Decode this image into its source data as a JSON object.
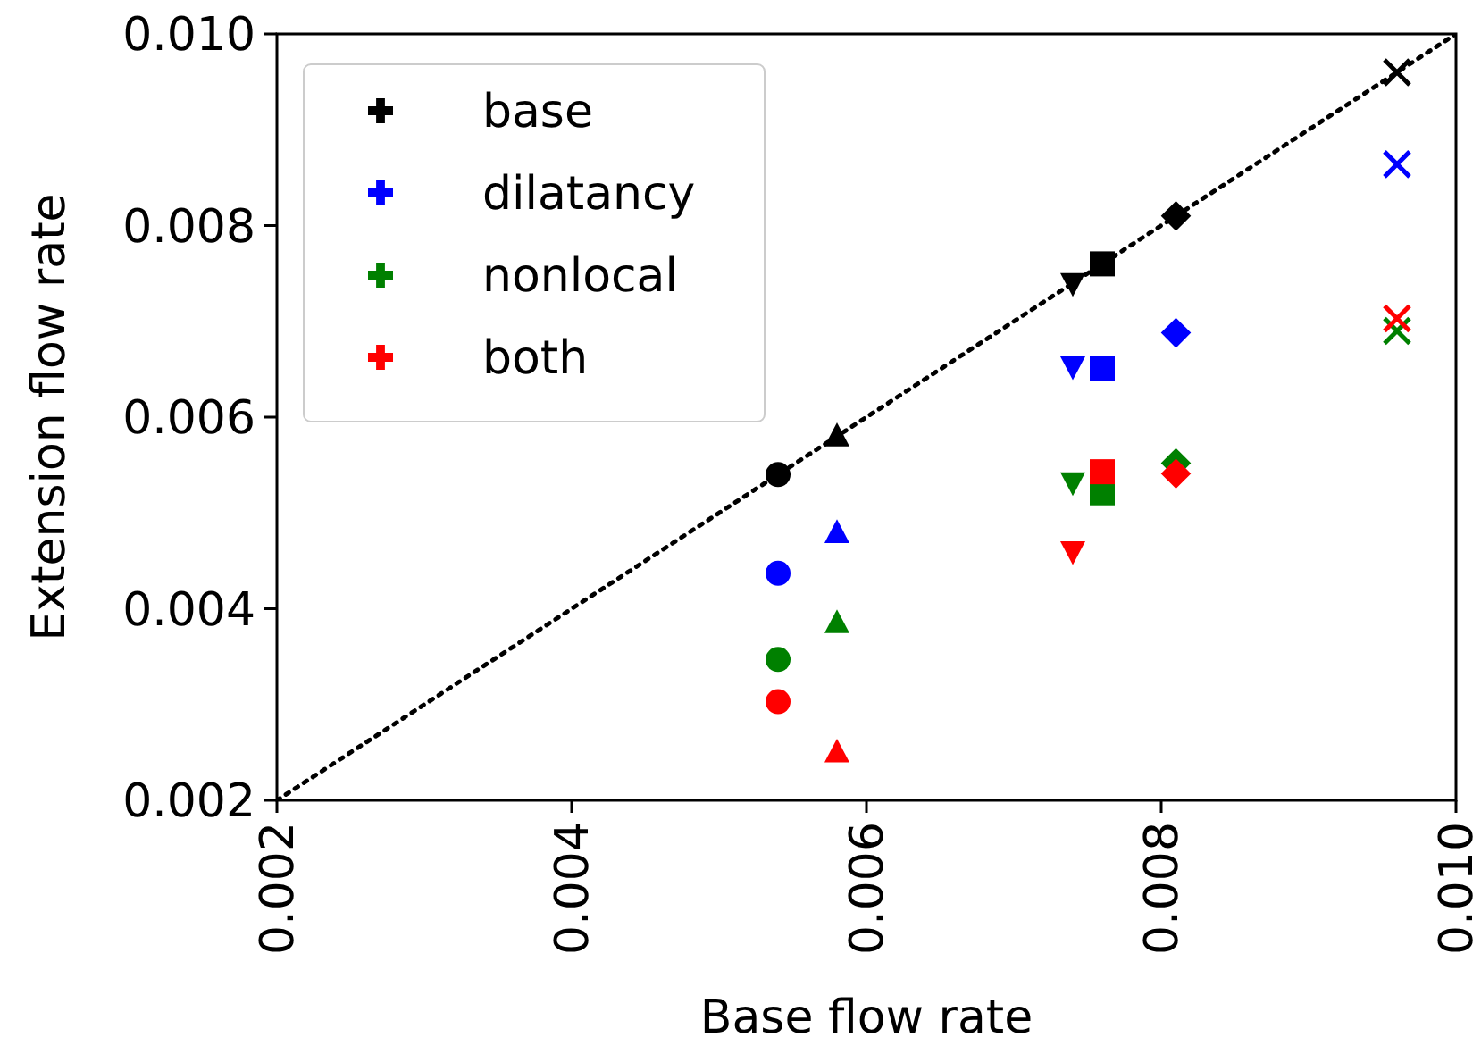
{
  "chart_data": {
    "type": "scatter",
    "xlabel": "Base flow rate",
    "ylabel": "Extension flow rate",
    "x": [
      0.0054,
      0.0058,
      0.0074,
      0.0076,
      0.0081,
      0.0096
    ],
    "xlim": [
      0.002,
      0.01
    ],
    "ylim": [
      0.002,
      0.01
    ],
    "xticks": [
      {
        "value": 0.002,
        "label": "0.002"
      },
      {
        "value": 0.004,
        "label": "0.004"
      },
      {
        "value": 0.006,
        "label": "0.006"
      },
      {
        "value": 0.008,
        "label": "0.008"
      },
      {
        "value": 0.01,
        "label": "0.010"
      }
    ],
    "yticks": [
      {
        "value": 0.002,
        "label": "0.002"
      },
      {
        "value": 0.004,
        "label": "0.004"
      },
      {
        "value": 0.006,
        "label": "0.006"
      },
      {
        "value": 0.008,
        "label": "0.008"
      },
      {
        "value": 0.01,
        "label": "0.010"
      }
    ],
    "legend": "top left",
    "grid": false,
    "series": [
      {
        "type": "line",
        "x": [
          0.002,
          0.01
        ],
        "values": [
          0.002,
          0.01
        ],
        "color": "#000000",
        "line_style": "dotted"
      },
      {
        "name": "base",
        "color": "#000000",
        "marker": [
          "circle",
          "triangle",
          "triangle-down",
          "square",
          "diamond",
          "cross"
        ],
        "values": [
          0.0054,
          0.0058,
          0.0074,
          0.0076,
          0.0081,
          0.0096
        ]
      },
      {
        "name": "dilatancy",
        "color": "#0000ff",
        "marker": [
          "circle",
          "triangle",
          "triangle-down",
          "square",
          "diamond",
          "cross"
        ],
        "values": [
          0.00437,
          0.00479,
          0.00653,
          0.00651,
          0.00688,
          0.00864
        ]
      },
      {
        "name": "nonlocal",
        "color": "#008000",
        "marker": [
          "circle",
          "triangle",
          "triangle-down",
          "square",
          "diamond",
          "cross"
        ],
        "values": [
          0.00347,
          0.00385,
          0.00532,
          0.00521,
          0.00552,
          0.0069
        ]
      },
      {
        "name": "both",
        "color": "#ff0000",
        "marker": [
          "circle",
          "triangle",
          "triangle-down",
          "square",
          "diamond",
          "cross"
        ],
        "values": [
          0.00303,
          0.0025,
          0.0046,
          0.00543,
          0.00541,
          0.00703
        ]
      }
    ]
  }
}
